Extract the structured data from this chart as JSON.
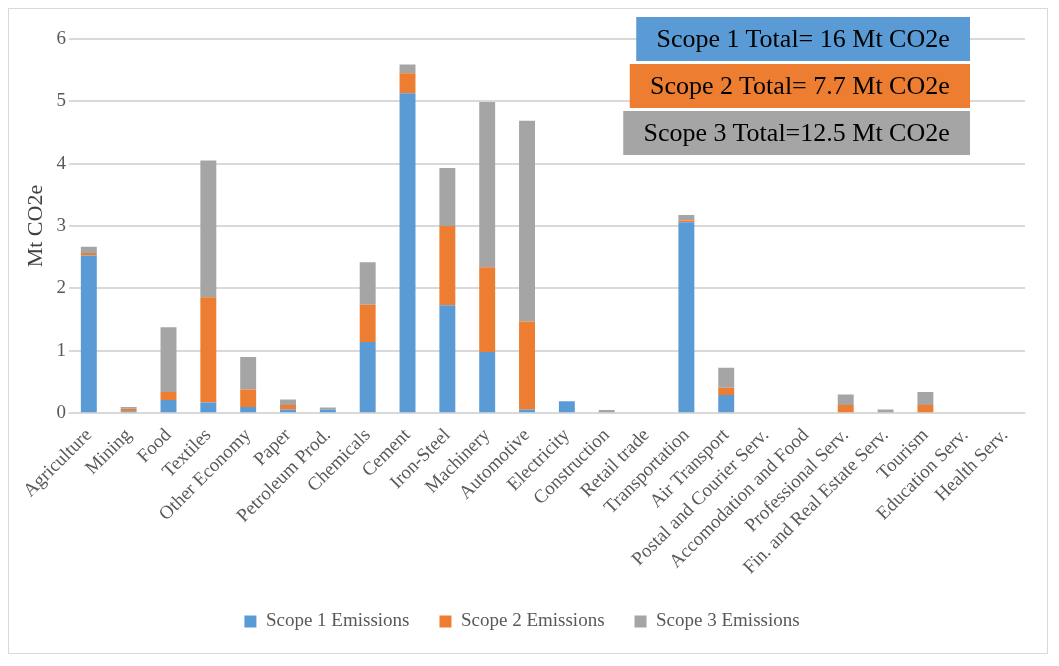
{
  "chart_data": {
    "type": "bar",
    "stacked": true,
    "ylabel": "Mt CO2e",
    "categories": [
      "Agriculture",
      "Mining",
      "Food",
      "Textiles",
      "Other Economy",
      "Paper",
      "Petroleum Prod.",
      "Chemicals",
      "Cement",
      "Iron-Steel",
      "Machinery",
      "Automotive",
      "Electricity",
      "Construction",
      "Retail trade",
      "Transportation",
      "Air Transport",
      "Postal and Courier Serv.",
      "Accomodation and Food",
      "Professional Serv.",
      "Fin. and Real Estate Serv.",
      "Tourism",
      "Education Serv.",
      "Health Serv."
    ],
    "series": [
      {
        "name": "Scope 1 Emissions",
        "color": "#5b9bd5",
        "values": [
          2.53,
          0.03,
          0.21,
          0.17,
          0.1,
          0.06,
          0.06,
          1.14,
          5.13,
          1.73,
          0.98,
          0.06,
          0.19,
          0,
          0,
          3.06,
          0.29,
          0,
          0,
          0,
          0,
          0,
          0,
          0
        ]
      },
      {
        "name": "Scope 2 Emissions",
        "color": "#ed7d31",
        "values": [
          0.04,
          0.04,
          0.13,
          1.69,
          0.28,
          0.07,
          0,
          0.6,
          0.32,
          1.27,
          1.36,
          1.41,
          0,
          0,
          0,
          0.03,
          0.12,
          0,
          0,
          0.13,
          0,
          0.13,
          0,
          0
        ]
      },
      {
        "name": "Scope 3 Emissions",
        "color": "#a5a5a5",
        "values": [
          0.1,
          0.03,
          1.04,
          2.19,
          0.52,
          0.09,
          0.03,
          0.68,
          0.14,
          0.93,
          2.65,
          3.22,
          0,
          0.05,
          0,
          0.09,
          0.32,
          0,
          0,
          0.17,
          0.06,
          0.21,
          0,
          0
        ]
      }
    ],
    "ylim": [
      0,
      6
    ],
    "yticks": [
      0,
      1,
      2,
      3,
      4,
      5,
      6
    ],
    "grid": "y",
    "legend": "bottom",
    "annotations": [
      "Scope 1 Total= 16 Mt CO2e",
      "Scope 2 Total= 7.7 Mt CO2e",
      "Scope 3 Total=12.5 Mt CO2e"
    ]
  }
}
